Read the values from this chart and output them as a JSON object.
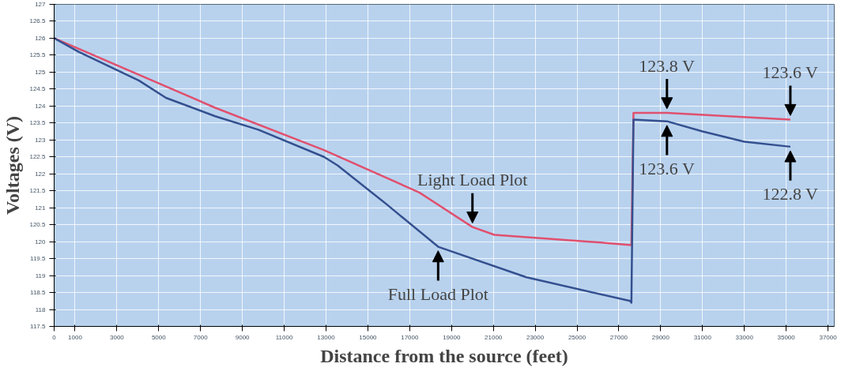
{
  "chart_data": {
    "type": "line",
    "xlabel": "Distance from the source (feet)",
    "ylabel": "Voltages (V)",
    "xlim": [
      0,
      37300
    ],
    "ylim": [
      117.5,
      127
    ],
    "xticks": [
      0,
      1000,
      3000,
      5000,
      7000,
      9000,
      11000,
      13000,
      15000,
      17000,
      19000,
      21000,
      23000,
      25000,
      27000,
      29000,
      31000,
      33000,
      35000,
      37000
    ],
    "yticks": [
      117.5,
      118,
      118.5,
      119,
      119.5,
      120,
      120.5,
      121,
      121.5,
      122,
      122.5,
      123,
      123.5,
      124,
      124.5,
      125,
      125.5,
      126,
      126.5,
      127
    ],
    "grid": true,
    "marker": "none",
    "line_style": "solid",
    "series": [
      {
        "color": "#e0506e",
        "x": [
          0,
          7700,
          12900,
          17460,
          20000,
          21050,
          25600,
          27600,
          27700,
          29300,
          35200
        ],
        "values": [
          126,
          123.95,
          122.7,
          121.45,
          120.43,
          120.2,
          120.0,
          119.9,
          123.8,
          123.8,
          123.6
        ]
      },
      {
        "color": "#34508f",
        "x": [
          0,
          1170,
          4060,
          5350,
          7700,
          9770,
          12900,
          13550,
          15900,
          18360,
          22580,
          27540,
          27600,
          27700,
          29300,
          31000,
          33000,
          35200
        ],
        "values": [
          126,
          125.6,
          124.75,
          124.24,
          123.7,
          123.3,
          122.5,
          122.25,
          121.1,
          119.85,
          118.95,
          118.25,
          118.2,
          123.6,
          123.55,
          123.25,
          122.95,
          122.8
        ]
      }
    ],
    "annotations": [
      {
        "text": "Light Load Plot",
        "x": 20000,
        "y": 120.43
      },
      {
        "text": "Full Load Plot",
        "x": 18360,
        "y": 119.85
      },
      {
        "text": "123.8 V",
        "x": 29300,
        "y": 123.8
      },
      {
        "text": "123.6 V",
        "x": 35200,
        "y": 123.6
      },
      {
        "text": "123.6 V",
        "x": 29300,
        "y": 123.55
      },
      {
        "text": "122.8 V",
        "x": 35200,
        "y": 122.8
      }
    ]
  }
}
